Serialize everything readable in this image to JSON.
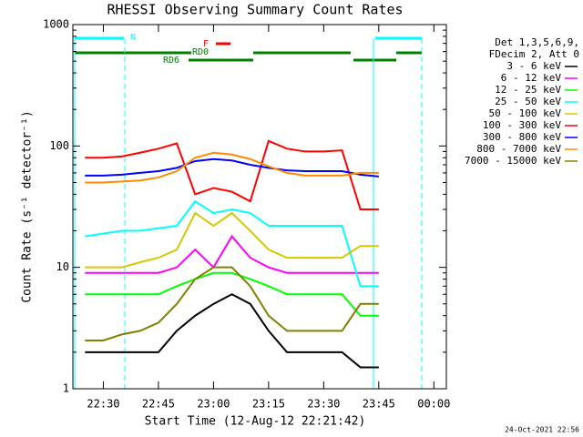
{
  "chart_data": {
    "type": "line",
    "title": "RHESSI Observing Summary Count Rates",
    "x_label": "Start Time (12-Aug-12 22:21:42)",
    "y_label": "Count Rate (s⁻¹ detector⁻¹)",
    "legend_title": [
      "Det 1,3,5,6,9,",
      "FDecim 2, Att 0"
    ],
    "date_stamp": "24-Oct-2021 22:56",
    "annotations": [
      "N",
      "F",
      "RD0",
      "RD6"
    ],
    "log_y": true,
    "xlim": [
      "22:21:42",
      "00:03:24"
    ],
    "xticks": [
      "22:30",
      "22:45",
      "23:00",
      "23:15",
      "23:30",
      "23:45",
      "00:00"
    ],
    "ylim": [
      1,
      1000
    ],
    "yticks": [
      1,
      10,
      100,
      1000
    ],
    "x": [
      "22:25",
      "22:30",
      "22:35",
      "22:40",
      "22:45",
      "22:50",
      "22:55",
      "23:00",
      "23:05",
      "23:10",
      "23:15",
      "23:20",
      "23:25",
      "23:30",
      "23:35",
      "23:40",
      "23:45"
    ],
    "series": [
      {
        "name": "3 - 6 keV",
        "color": "#000000",
        "values": [
          2,
          2,
          2,
          2,
          2,
          3,
          4,
          5,
          6,
          5,
          3,
          2,
          2,
          2,
          2,
          1.5,
          1.5
        ]
      },
      {
        "name": "6 - 12 keV",
        "color": "#ff00ff",
        "values": [
          9,
          9,
          9,
          9,
          9,
          10,
          14,
          10,
          18,
          12,
          10,
          9,
          9,
          9,
          9,
          9,
          9
        ]
      },
      {
        "name": "12 - 25 keV",
        "color": "#00ff00",
        "values": [
          6,
          6,
          6,
          6,
          6,
          7,
          8,
          9,
          9,
          8,
          7,
          6,
          6,
          6,
          6,
          4,
          4
        ]
      },
      {
        "name": "25 - 50 keV",
        "color": "#00ffff",
        "values": [
          18,
          19,
          20,
          20,
          21,
          22,
          35,
          28,
          30,
          28,
          22,
          22,
          22,
          22,
          22,
          7,
          7
        ]
      },
      {
        "name": "50 - 100 keV",
        "color": "#d4c800",
        "values": [
          10,
          10,
          10,
          11,
          12,
          14,
          28,
          22,
          28,
          20,
          14,
          12,
          12,
          12,
          12,
          15,
          15
        ]
      },
      {
        "name": "100 - 300 keV",
        "color": "#ff0000",
        "values": [
          80,
          80,
          82,
          88,
          95,
          105,
          40,
          45,
          42,
          35,
          110,
          95,
          90,
          90,
          92,
          30,
          30
        ]
      },
      {
        "name": "300 - 800 keV",
        "color": "#0000ff",
        "values": [
          57,
          57,
          58,
          60,
          62,
          66,
          75,
          78,
          76,
          70,
          66,
          63,
          62,
          62,
          62,
          58,
          56
        ]
      },
      {
        "name": "800 - 7000 keV",
        "color": "#ff8c00",
        "values": [
          50,
          50,
          51,
          52,
          55,
          62,
          80,
          88,
          85,
          78,
          68,
          60,
          57,
          57,
          57,
          60,
          60
        ]
      },
      {
        "name": "7000 - 15000 keV",
        "color": "#808000",
        "values": [
          2.5,
          2.5,
          2.8,
          3,
          3.5,
          5,
          8,
          10,
          10,
          7,
          4,
          3,
          3,
          3,
          3,
          5,
          5
        ]
      }
    ]
  }
}
